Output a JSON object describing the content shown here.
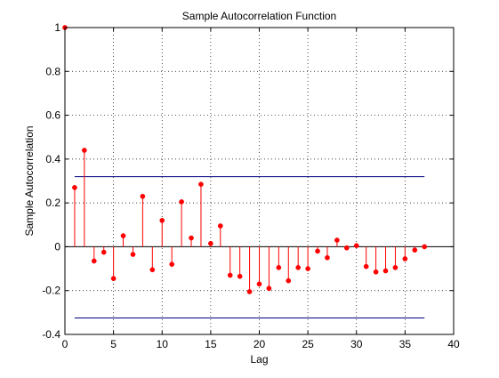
{
  "chart_data": {
    "type": "stem",
    "title": "Sample Autocorrelation Function",
    "xlabel": "Lag",
    "ylabel": "Sample Autocorrelation",
    "xlim": [
      0,
      40
    ],
    "ylim": [
      -0.4,
      1
    ],
    "xticks": [
      0,
      5,
      10,
      15,
      20,
      25,
      30,
      35,
      40
    ],
    "yticks": [
      -0.4,
      -0.2,
      0,
      0.2,
      0.4,
      0.6,
      0.8,
      1
    ],
    "xtick_labels": [
      "0",
      "5",
      "10",
      "15",
      "20",
      "25",
      "30",
      "35",
      "40"
    ],
    "ytick_labels": [
      "-0.4",
      "-0.2",
      "0",
      "0.2",
      "0.4",
      "0.6",
      "0.8",
      "1"
    ],
    "grid": true,
    "series": [
      {
        "x": [
          0,
          1,
          2,
          3,
          4,
          5,
          6,
          7,
          8,
          9,
          10,
          11,
          12,
          13,
          14,
          15,
          16,
          17,
          18,
          19,
          20,
          21,
          22,
          23,
          24,
          25,
          26,
          27,
          28,
          29,
          30,
          31,
          32,
          33,
          34,
          35,
          36,
          37
        ],
        "values": [
          1.0,
          0.27,
          0.44,
          -0.065,
          -0.025,
          -0.145,
          0.05,
          -0.035,
          0.23,
          -0.105,
          0.12,
          -0.08,
          0.205,
          0.04,
          0.285,
          0.015,
          0.095,
          -0.13,
          -0.135,
          -0.205,
          -0.17,
          -0.19,
          -0.095,
          -0.155,
          -0.095,
          -0.1,
          -0.02,
          -0.05,
          0.03,
          -0.005,
          0.005,
          -0.09,
          -0.115,
          -0.11,
          -0.095,
          -0.055,
          -0.015,
          0.0
        ],
        "color": "#ff0000"
      }
    ],
    "confidence_bounds": {
      "upper": 0.32,
      "lower": -0.325,
      "x_range": [
        1,
        37
      ],
      "color": "#00007f"
    },
    "zero_line_color": "#000000"
  }
}
